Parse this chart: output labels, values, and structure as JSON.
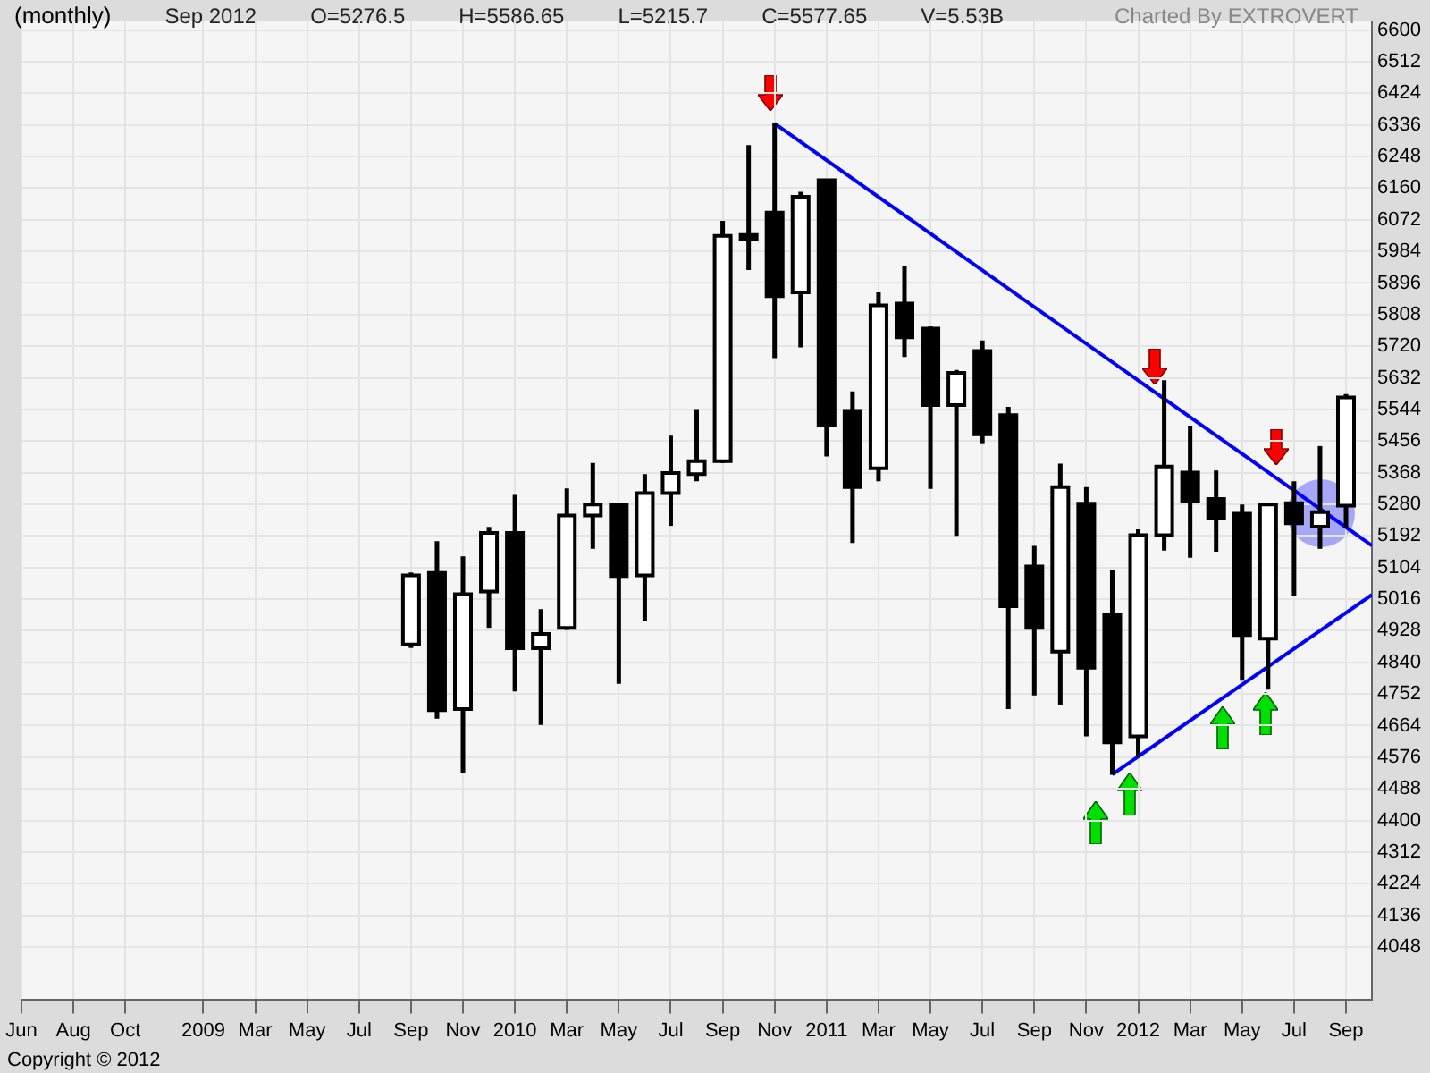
{
  "chart_data": {
    "type": "candlestick",
    "title": "(monthly)",
    "annotations": [
      "Sep 2012",
      "O=5276.5",
      "H=5586.65",
      "L=5215.7",
      "C=5577.65",
      "V=5.53B",
      "Charted By EXTROVERT",
      "Copyright © 2012"
    ],
    "x": [
      "2009-09",
      "2009-10",
      "2009-11",
      "2009-12",
      "2010-01",
      "2010-02",
      "2010-03",
      "2010-04",
      "2010-05",
      "2010-06",
      "2010-07",
      "2010-08",
      "2010-09",
      "2010-10",
      "2010-11",
      "2010-12",
      "2011-01",
      "2011-02",
      "2011-03",
      "2011-04",
      "2011-05",
      "2011-06",
      "2011-07",
      "2011-08",
      "2011-09",
      "2011-10",
      "2011-11",
      "2011-12",
      "2012-01",
      "2012-02",
      "2012-03",
      "2012-04",
      "2012-05",
      "2012-06",
      "2012-07",
      "2012-08",
      "2012-09"
    ],
    "ohlc": [
      [
        4890,
        5090,
        4880,
        5082
      ],
      [
        5089,
        5177,
        4683,
        4707
      ],
      [
        4710,
        5135,
        4531,
        5030
      ],
      [
        5037,
        5217,
        4936,
        5200
      ],
      [
        5200,
        5306,
        4759,
        4879
      ],
      [
        4879,
        4988,
        4666,
        4919
      ],
      [
        4936,
        5324,
        4930,
        5249
      ],
      [
        5249,
        5395,
        5156,
        5279
      ],
      [
        5279,
        5285,
        4780,
        5080
      ],
      [
        5082,
        5364,
        4955,
        5311
      ],
      [
        5311,
        5471,
        5220,
        5367
      ],
      [
        5364,
        5545,
        5344,
        5400
      ],
      [
        5400,
        6069,
        5395,
        6027
      ],
      [
        6030,
        6280,
        5932,
        6018
      ],
      [
        6092,
        6340,
        5687,
        5859
      ],
      [
        5870,
        6150,
        5717,
        6136
      ],
      [
        6182,
        6185,
        5413,
        5499
      ],
      [
        5540,
        5594,
        5172,
        5328
      ],
      [
        5380,
        5870,
        5344,
        5834
      ],
      [
        5839,
        5943,
        5690,
        5745
      ],
      [
        5769,
        5775,
        5323,
        5556
      ],
      [
        5556,
        5654,
        5192,
        5646
      ],
      [
        5707,
        5736,
        5450,
        5475
      ],
      [
        5528,
        5551,
        4710,
        4996
      ],
      [
        5107,
        5164,
        4748,
        4936
      ],
      [
        4870,
        5393,
        4720,
        5328
      ],
      [
        5282,
        5328,
        4634,
        4825
      ],
      [
        4972,
        5096,
        4527,
        4617
      ],
      [
        4634,
        5210,
        4576,
        5194
      ],
      [
        5194,
        5625,
        5151,
        5385
      ],
      [
        5368,
        5499,
        5131,
        5290
      ],
      [
        5295,
        5374,
        5148,
        5241
      ],
      [
        5254,
        5279,
        4789,
        4916
      ],
      [
        4906,
        5285,
        4764,
        5279
      ],
      [
        5283,
        5344,
        5024,
        5227
      ],
      [
        5218,
        5442,
        5156,
        5258
      ],
      [
        5276.5,
        5586.65,
        5215.7,
        5577.65
      ]
    ],
    "series": [
      {
        "type": "line",
        "color": "#0000ff",
        "x": [
          "2010-11",
          "2012-10"
        ],
        "values": [
          6340,
          5165
        ]
      },
      {
        "type": "line",
        "color": "#0000ff",
        "x": [
          "2011-12",
          "2012-10"
        ],
        "values": [
          4528,
          5028
        ]
      }
    ],
    "xlim": [
      "2008-06",
      "2012-10"
    ],
    "xticks": [
      {
        "value": "2008-06",
        "label": "Jun"
      },
      {
        "value": "2008-08",
        "label": "Aug"
      },
      {
        "value": "2008-10",
        "label": "Oct"
      },
      {
        "value": "2009-01",
        "label": "2009"
      },
      {
        "value": "2009-03",
        "label": "Mar"
      },
      {
        "value": "2009-05",
        "label": "May"
      },
      {
        "value": "2009-07",
        "label": "Jul"
      },
      {
        "value": "2009-09",
        "label": "Sep"
      },
      {
        "value": "2009-11",
        "label": "Nov"
      },
      {
        "value": "2010-01",
        "label": "2010"
      },
      {
        "value": "2010-03",
        "label": "Mar"
      },
      {
        "value": "2010-05",
        "label": "May"
      },
      {
        "value": "2010-07",
        "label": "Jul"
      },
      {
        "value": "2010-09",
        "label": "Sep"
      },
      {
        "value": "2010-11",
        "label": "Nov"
      },
      {
        "value": "2011-01",
        "label": "2011"
      },
      {
        "value": "2011-03",
        "label": "Mar"
      },
      {
        "value": "2011-05",
        "label": "May"
      },
      {
        "value": "2011-07",
        "label": "Jul"
      },
      {
        "value": "2011-09",
        "label": "Sep"
      },
      {
        "value": "2011-11",
        "label": "Nov"
      },
      {
        "value": "2012-01",
        "label": "2012"
      },
      {
        "value": "2012-03",
        "label": "Mar"
      },
      {
        "value": "2012-05",
        "label": "May"
      },
      {
        "value": "2012-07",
        "label": "Jul"
      },
      {
        "value": "2012-09",
        "label": "Sep"
      }
    ],
    "ylim": [
      3902,
      6624
    ],
    "yticks": [
      6600,
      6512,
      6424,
      6336,
      6248,
      6160,
      6072,
      5984,
      5896,
      5808,
      5720,
      5632,
      5544,
      5456,
      5368,
      5280,
      5192,
      5104,
      5016,
      4928,
      4840,
      4752,
      4664,
      4576,
      4488,
      4400,
      4312,
      4224,
      4136,
      4048
    ],
    "grid": true
  }
}
